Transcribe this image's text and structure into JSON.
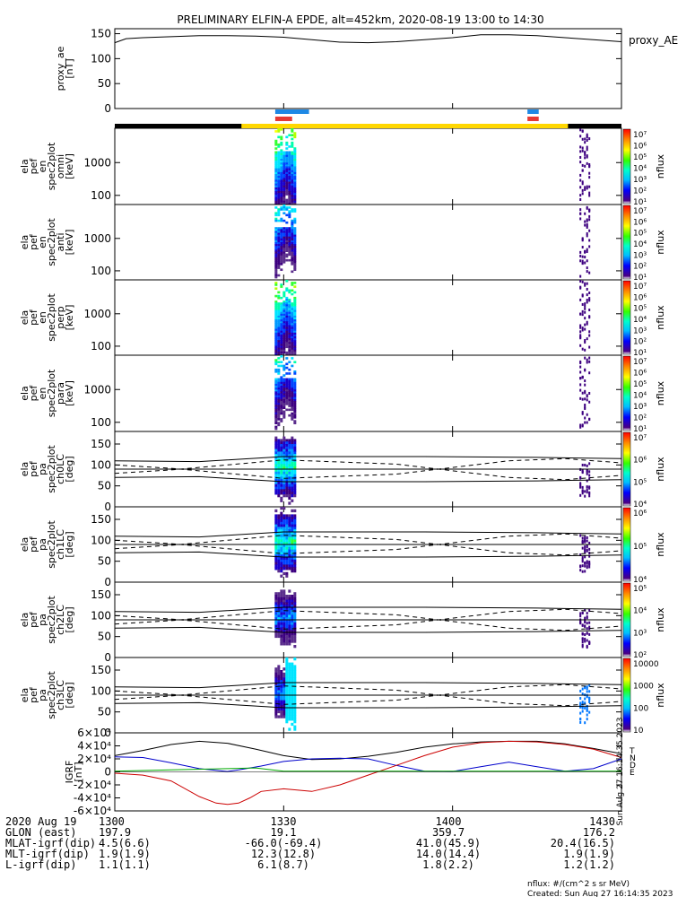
{
  "chart_data": {
    "type": "line",
    "title": "PRELIMINARY ELFIN-A EPDE, alt=452km, 2020-08-19 13:00 to 14:30",
    "x_range_minutes": [
      0,
      90
    ],
    "x_tick_labels": [
      "1300",
      "1330",
      "1400",
      "1430"
    ],
    "x_tick_minutes": [
      0,
      30,
      60,
      90
    ],
    "panels": [
      {
        "id": "proxy_ae",
        "ylabel": "proxy_ae\n[nT]",
        "right_label": "proxy_AE",
        "ylim": [
          0,
          160
        ],
        "yticks": [
          "0",
          "50",
          "100",
          "150"
        ],
        "ytick_values": [
          0,
          50,
          100,
          150
        ],
        "series": [
          {
            "name": "proxy_AE",
            "x": [
              0,
              2,
              5,
              10,
              15,
              20,
              25,
              30,
              35,
              40,
              45,
              50,
              55,
              60,
              65,
              70,
              75,
              80,
              85,
              90
            ],
            "y": [
              132,
              140,
              142,
              144,
              146,
              146,
              145,
              143,
              138,
              133,
              132,
              134,
              138,
              142,
              148,
              148,
              146,
              142,
              138,
              134
            ]
          }
        ]
      },
      {
        "id": "omni",
        "ylabel": "ela\npef\nen\nspec2plot\nomni\n[keV]",
        "yticks": [
          "100",
          "1000"
        ]
      },
      {
        "id": "anti",
        "ylabel": "ela\npef\nen\nspec2plot\nanti\n[keV]",
        "yticks": [
          "100",
          "1000"
        ]
      },
      {
        "id": "perp",
        "ylabel": "ela\npef\nen\nspec2plot\nperp\n[keV]",
        "yticks": [
          "100",
          "1000"
        ]
      },
      {
        "id": "para",
        "ylabel": "ela\npef\nen\nspec2plot\npara\n[keV]",
        "yticks": [
          "100",
          "1000"
        ]
      },
      {
        "id": "ch0LC",
        "ylabel": "ela\npef\npa\nspec2plot\nch0LC\n[deg]",
        "yticks": [
          "0",
          "50",
          "100",
          "150"
        ]
      },
      {
        "id": "ch1LC",
        "ylabel": "ela\npef\npa\nspec2plot\nch1LC\n[deg]",
        "yticks": [
          "0",
          "50",
          "100",
          "150"
        ]
      },
      {
        "id": "ch2LC",
        "ylabel": "ela\npef\npa\nspec2plot\nch2LC\n[deg]",
        "yticks": [
          "0",
          "50",
          "100",
          "150"
        ]
      },
      {
        "id": "ch3LC",
        "ylabel": "ela\npef\npa\nspec2plot\nch3LC\n[deg]",
        "yticks": [
          "0",
          "50",
          "100",
          "150"
        ]
      },
      {
        "id": "igrf",
        "ylabel": "IGRF\n[nT]",
        "ylim": [
          -60000,
          60000
        ],
        "yticks": [
          "-6×10⁴",
          "-4×10⁴",
          "-2×10⁴",
          "0",
          "2×10⁴",
          "4×10⁴",
          "6×10⁴"
        ],
        "ytick_values": [
          -60000,
          -40000,
          -20000,
          0,
          20000,
          40000,
          60000
        ],
        "legend": [
          "T",
          "N",
          "D",
          "E"
        ],
        "series": [
          {
            "name": "T",
            "x": [
              0,
              5,
              10,
              15,
              20,
              25,
              30,
              35,
              40,
              45,
              50,
              55,
              60,
              65,
              70,
              75,
              80,
              85,
              90
            ],
            "y": [
              25000,
              33000,
              42000,
              47000,
              44000,
              35000,
              25000,
              19000,
              20000,
              24000,
              30000,
              38000,
              43000,
              46000,
              47000,
              47000,
              43000,
              36000,
              28000
            ]
          },
          {
            "name": "N",
            "x": [
              0,
              5,
              10,
              15,
              20,
              22,
              24,
              26,
              30,
              35,
              40,
              45,
              50,
              55,
              60,
              65,
              70,
              75,
              80,
              85,
              90
            ],
            "y": [
              23000,
              22000,
              14000,
              5000,
              500,
              3000,
              6000,
              9000,
              16000,
              20000,
              21000,
              20000,
              10000,
              1000,
              500,
              8000,
              15000,
              8000,
              1000,
              5000,
              20000
            ]
          },
          {
            "name": "D",
            "x": [
              0,
              5,
              10,
              15,
              18,
              20,
              22,
              24,
              26,
              30,
              35,
              40,
              45,
              50,
              55,
              60,
              65,
              70,
              75,
              80,
              85,
              90
            ],
            "y": [
              -2000,
              -5000,
              -14000,
              -38000,
              -48000,
              -50000,
              -48000,
              -40000,
              -30000,
              -26000,
              -30000,
              -20000,
              -5000,
              10000,
              25000,
              38000,
              45000,
              47000,
              46000,
              42000,
              35000,
              22000
            ]
          },
          {
            "name": "E",
            "x": [
              0,
              10,
              20,
              25,
              30,
              40,
              50,
              60,
              70,
              80,
              90
            ],
            "y": [
              1000,
              3000,
              5000,
              6000,
              1000,
              1000,
              1000,
              1000,
              1000,
              1000,
              1000
            ]
          }
        ]
      }
    ],
    "colorbars": [
      {
        "label": "nflux",
        "ticks": [
          "10¹",
          "10²",
          "10³",
          "10⁴",
          "10⁵",
          "10⁶",
          "10⁷"
        ]
      },
      {
        "label": "nflux",
        "ticks": [
          "10¹",
          "10²",
          "10³",
          "10⁴",
          "10⁵",
          "10⁶",
          "10⁷"
        ]
      },
      {
        "label": "nflux",
        "ticks": [
          "10¹",
          "10²",
          "10³",
          "10⁴",
          "10⁵",
          "10⁶",
          "10⁷"
        ]
      },
      {
        "label": "nflux",
        "ticks": [
          "10¹",
          "10²",
          "10³",
          "10⁴",
          "10⁵",
          "10⁶",
          "10⁷"
        ]
      },
      {
        "label": "nflux",
        "ticks": [
          "10⁴",
          "10⁵",
          "10⁶",
          "10⁷"
        ]
      },
      {
        "label": "nflux",
        "ticks": [
          "10⁴",
          "10⁵",
          "10⁶"
        ]
      },
      {
        "label": "nflux",
        "ticks": [
          "10²",
          "10³",
          "10⁴",
          "10⁵"
        ]
      },
      {
        "label": "nflux",
        "ticks": [
          "10",
          "100",
          "1000",
          "10000"
        ]
      }
    ],
    "footer": {
      "rows": [
        [
          "2020 Aug 19",
          "1300",
          "1330",
          "1400",
          "1430"
        ],
        [
          "GLON (east)",
          "197.9",
          "19.1",
          "359.7",
          "176.2"
        ],
        [
          "MLAT-igrf(dip)",
          "4.5(6.6)",
          "-66.0(-69.4)",
          "41.0(45.9)",
          "20.4(16.5)"
        ],
        [
          "MLT-igrf(dip)",
          "1.9(1.9)",
          "12.3(12.8)",
          "14.0(14.4)",
          "1.9(1.9)"
        ],
        [
          "L-igrf(dip)",
          "1.1(1.1)",
          "6.1(8.7)",
          "1.8(2.2)",
          "1.2(1.2)"
        ]
      ],
      "units": "nflux: #/(cm^2 s sr MeV)",
      "created": "Created: Sun Aug 27 16:14:35 2023",
      "side_stamp": "Sun Aug 27 16:14:35 2023"
    }
  }
}
